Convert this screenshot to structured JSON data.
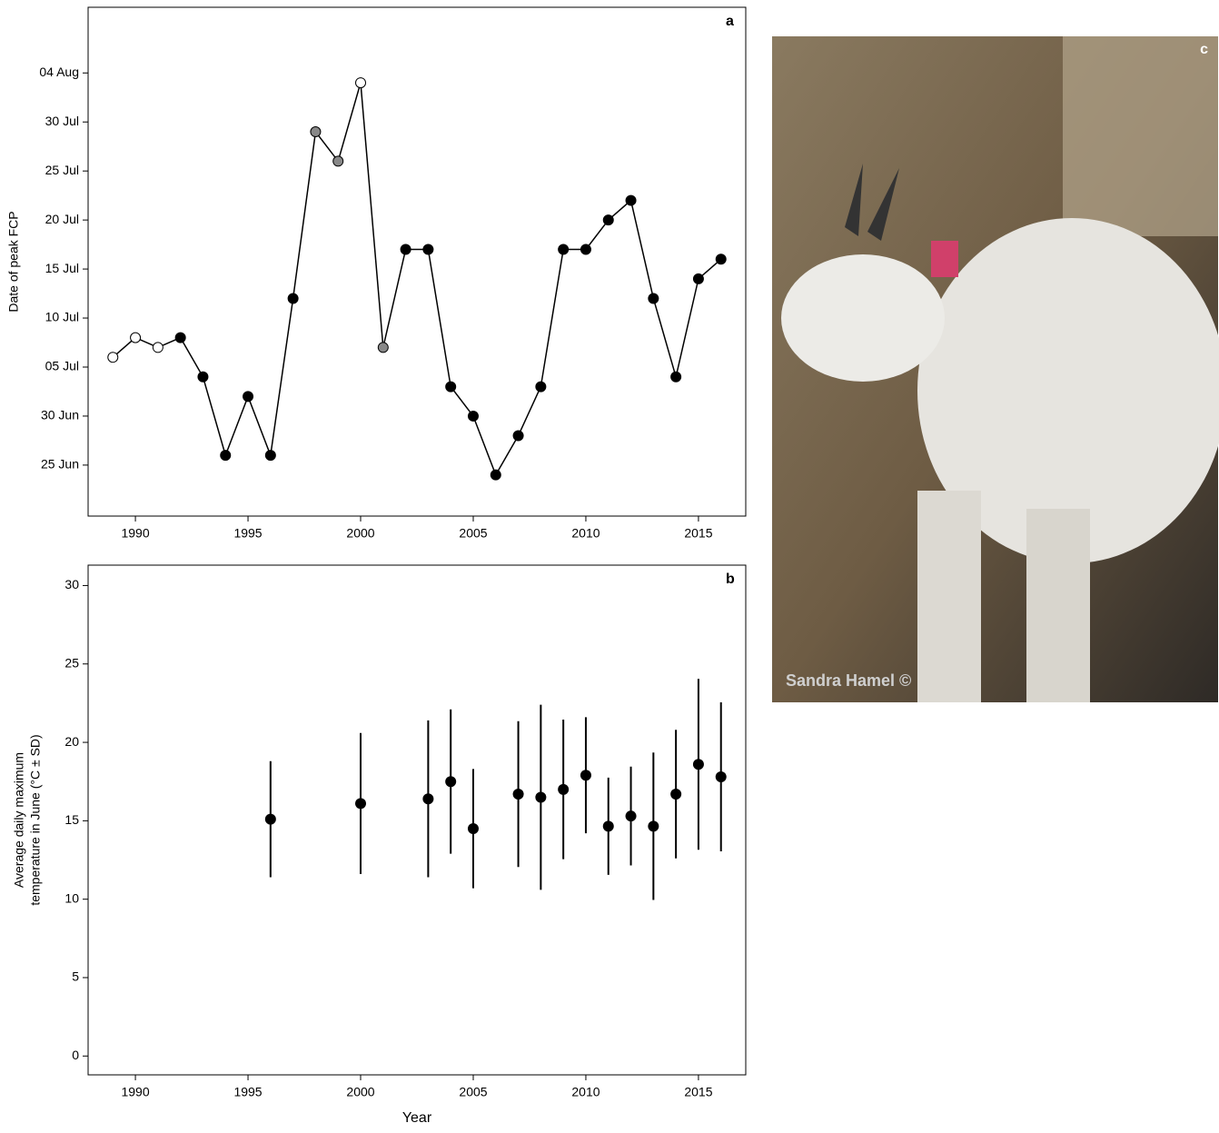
{
  "chart_data": [
    {
      "type": "line",
      "panel_label": "a",
      "ylabel": "Date of peak FCP",
      "x": [
        1989,
        1990,
        1991,
        1992,
        1993,
        1994,
        1995,
        1996,
        1997,
        1998,
        1999,
        2000,
        2001,
        2002,
        2003,
        2004,
        2005,
        2006,
        2007,
        2008,
        2009,
        2010,
        2011,
        2012,
        2013,
        2014,
        2015,
        2016
      ],
      "values": [
        187,
        189,
        188,
        189,
        185,
        177,
        183,
        177,
        193,
        210,
        207,
        215,
        188,
        198,
        198,
        184,
        181,
        175,
        179,
        184,
        198,
        198,
        201,
        203,
        193,
        185,
        195,
        197
      ],
      "marker_fills": [
        "#ffffff",
        "#ffffff",
        "#ffffff",
        "#000000",
        "#000000",
        "#000000",
        "#000000",
        "#000000",
        "#000000",
        "#888888",
        "#888888",
        "#ffffff",
        "#888888",
        "#000000",
        "#000000",
        "#000000",
        "#000000",
        "#000000",
        "#000000",
        "#000000",
        "#000000",
        "#000000",
        "#000000",
        "#000000",
        "#000000",
        "#000000",
        "#000000",
        "#000000"
      ],
      "color": "#000000",
      "xlim": [
        1987.9,
        2017.1
      ],
      "xticks": [
        1990,
        1995,
        2000,
        2005,
        2010,
        2015
      ],
      "ylim": [
        170.8,
        222.7
      ],
      "yticks": [
        {
          "value": 176,
          "label": "25 Jun"
        },
        {
          "value": 181,
          "label": "30 Jun"
        },
        {
          "value": 186,
          "label": "05 Jul"
        },
        {
          "value": 191,
          "label": "10 Jul"
        },
        {
          "value": 196,
          "label": "15 Jul"
        },
        {
          "value": 201,
          "label": "20 Jul"
        },
        {
          "value": 206,
          "label": "25 Jul"
        },
        {
          "value": 211,
          "label": "30 Jul"
        },
        {
          "value": 216,
          "label": "04 Aug"
        }
      ]
    },
    {
      "type": "errorbar",
      "panel_label": "b",
      "xlabel": "Year",
      "ylabel": [
        "Average daily maximum",
        "temperature in June (°C ± SD)"
      ],
      "x": [
        1996,
        2000,
        2003,
        2004,
        2005,
        2007,
        2008,
        2009,
        2010,
        2011,
        2012,
        2013,
        2014,
        2015,
        2016
      ],
      "values": [
        15.1,
        16.1,
        16.4,
        17.5,
        14.5,
        16.7,
        16.5,
        17.0,
        17.9,
        14.65,
        15.3,
        14.65,
        16.7,
        18.6,
        17.8
      ],
      "errors": [
        3.7,
        4.5,
        5.0,
        4.6,
        3.8,
        4.65,
        5.9,
        4.45,
        3.7,
        3.1,
        3.15,
        4.7,
        4.1,
        5.45,
        4.75
      ],
      "color": "#000000",
      "xlim": [
        1987.9,
        2017.1
      ],
      "xticks": [
        1990,
        1995,
        2000,
        2005,
        2010,
        2015
      ],
      "ylim": [
        -1.2,
        31.3
      ],
      "yticks": [
        0,
        5,
        10,
        15,
        20,
        25,
        30
      ]
    }
  ],
  "photo": {
    "panel_label": "c",
    "credit": "Sandra Hamel ©"
  }
}
